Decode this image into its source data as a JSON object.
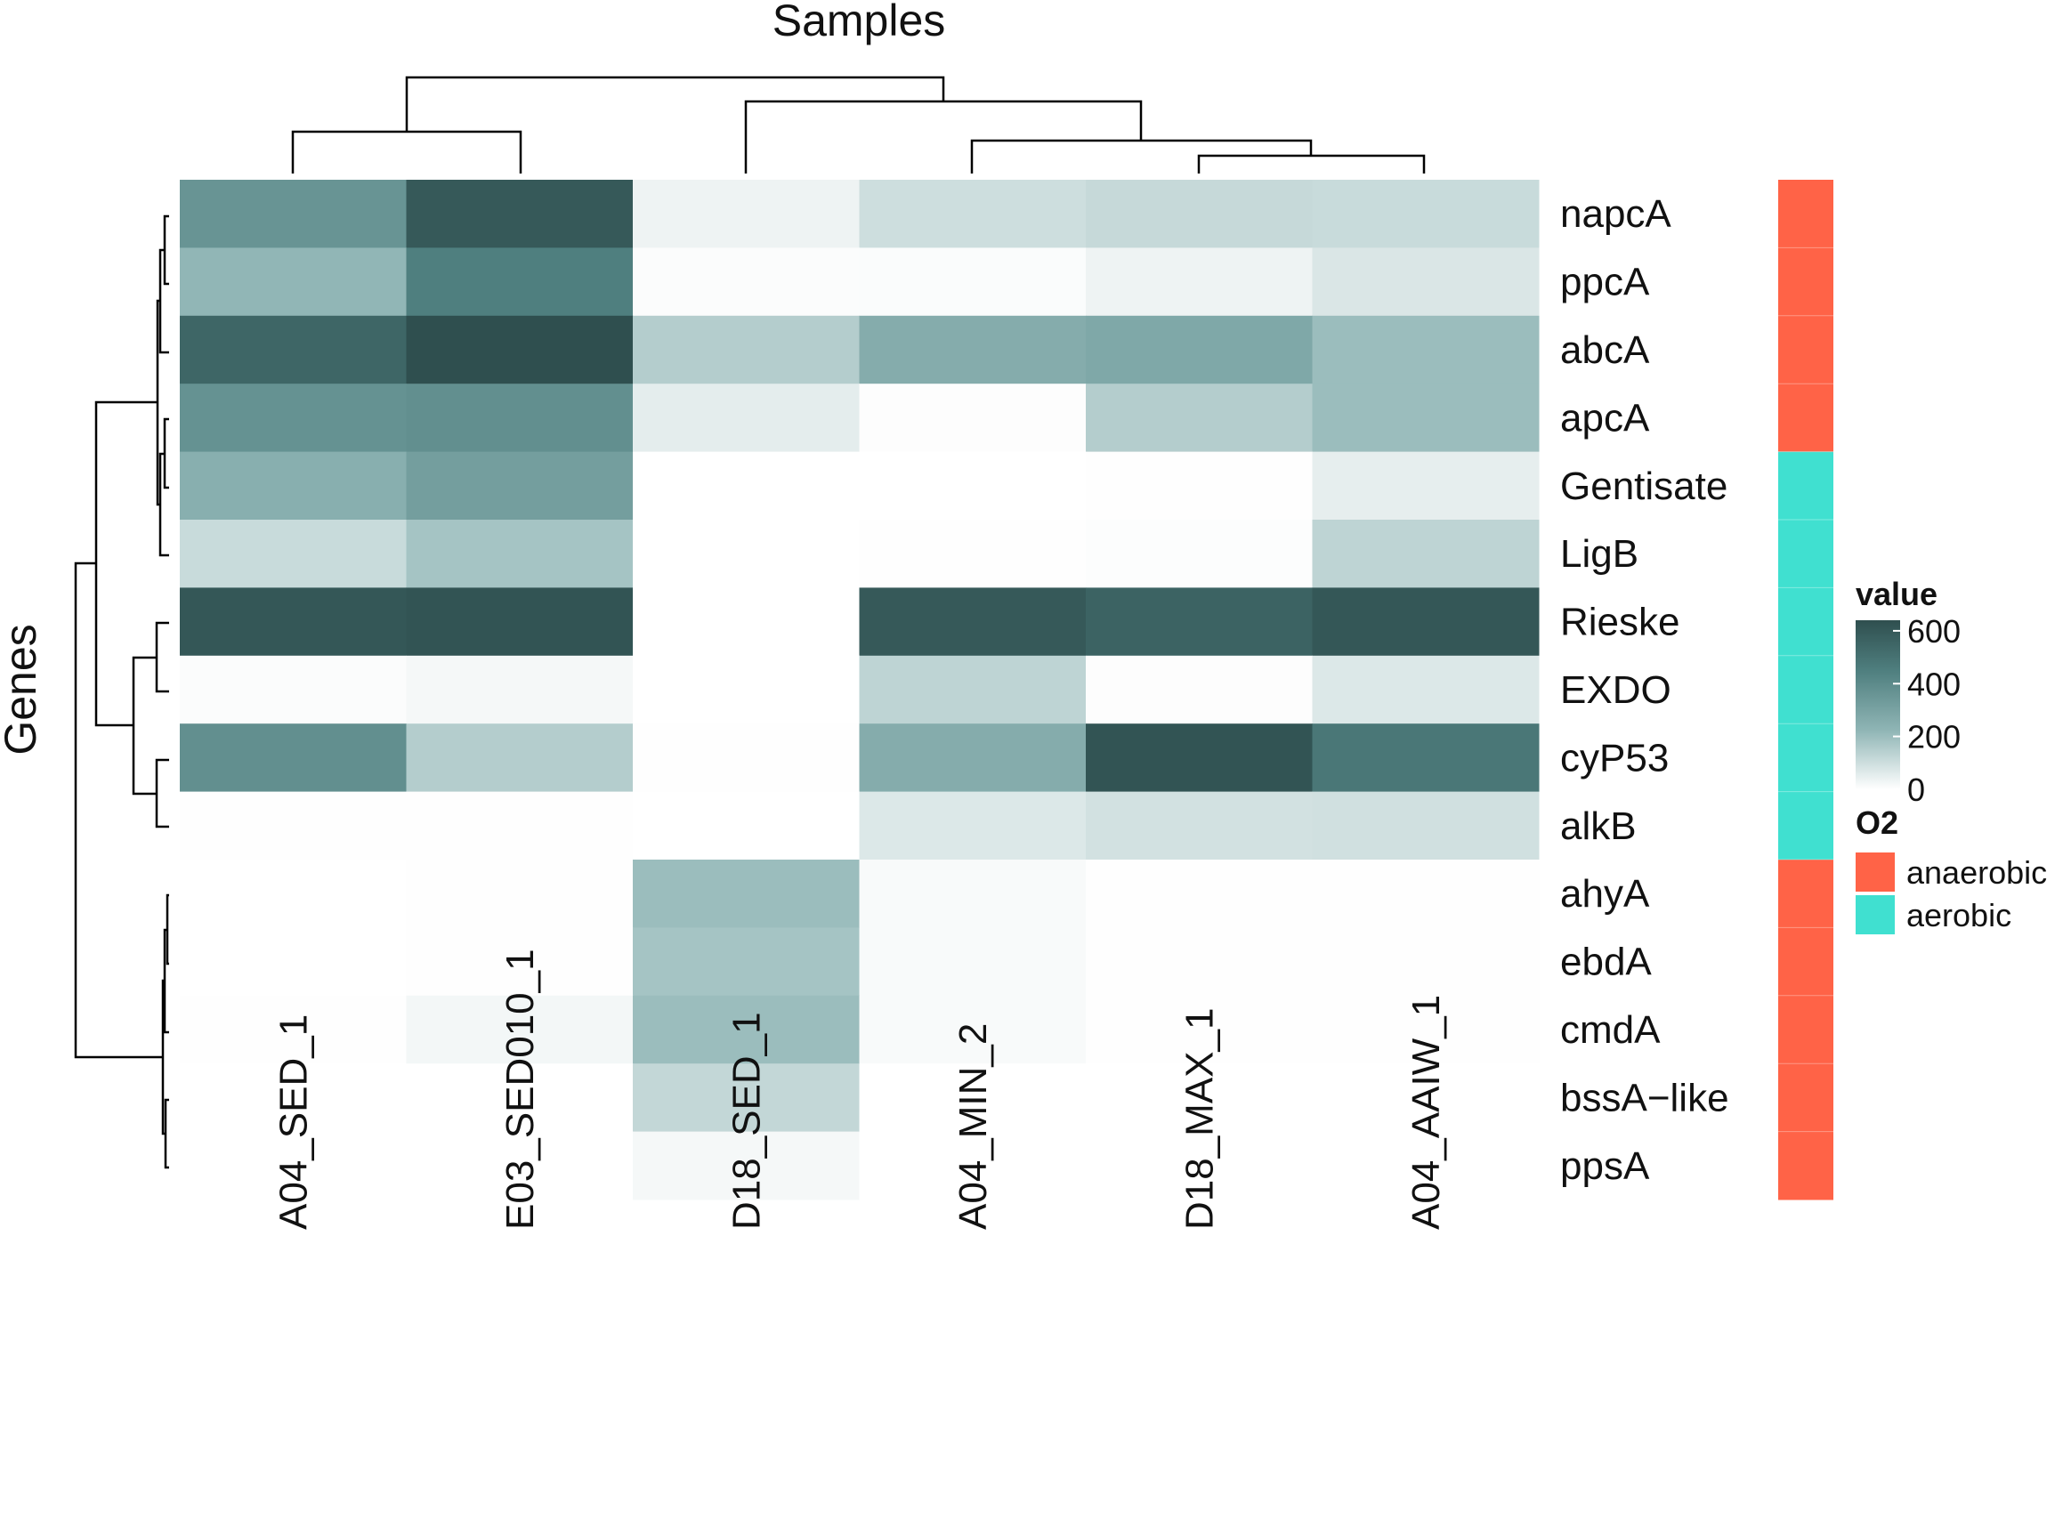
{
  "chart_data": {
    "type": "heatmap",
    "title": "Samples",
    "ylabel": "Genes",
    "columns": [
      "A04_SED_1",
      "E03_SED010_1",
      "D18_SED_1",
      "A04_MIN_2",
      "D18_MAX_1",
      "A04_AAIW_1"
    ],
    "rows": [
      "napcA",
      "ppcA",
      "abcA",
      "apcA",
      "Gentisate",
      "LigB",
      "Rieske",
      "EXDO",
      "cyP53",
      "alkB",
      "ahyA",
      "ebdA",
      "cmdA",
      "bssA−like",
      "ppsA"
    ],
    "values": [
      [
        360,
        600,
        35,
        100,
        115,
        110
      ],
      [
        220,
        450,
        8,
        10,
        35,
        75
      ],
      [
        550,
        640,
        150,
        260,
        280,
        200
      ],
      [
        370,
        380,
        55,
        5,
        150,
        200
      ],
      [
        250,
        320,
        0,
        0,
        3,
        50
      ],
      [
        110,
        180,
        0,
        3,
        6,
        130
      ],
      [
        610,
        620,
        0,
        600,
        560,
        610
      ],
      [
        8,
        20,
        0,
        130,
        5,
        70
      ],
      [
        380,
        150,
        2,
        260,
        620,
        480
      ],
      [
        3,
        2,
        0,
        70,
        90,
        95
      ],
      [
        0,
        2,
        200,
        15,
        3,
        3
      ],
      [
        0,
        3,
        180,
        15,
        3,
        3
      ],
      [
        3,
        25,
        200,
        15,
        3,
        3
      ],
      [
        0,
        0,
        120,
        0,
        0,
        0
      ],
      [
        0,
        0,
        20,
        0,
        0,
        0
      ]
    ],
    "row_annotation": {
      "name": "O2",
      "values": [
        "anaerobic",
        "anaerobic",
        "anaerobic",
        "anaerobic",
        "aerobic",
        "aerobic",
        "aerobic",
        "aerobic",
        "aerobic",
        "aerobic",
        "anaerobic",
        "anaerobic",
        "anaerobic",
        "anaerobic",
        "anaerobic"
      ]
    },
    "color_scale": {
      "title": "value",
      "min": 0,
      "max": 640,
      "low_color": "#ffffff",
      "high_color": "#2f4f4f",
      "ticks": [
        600,
        400,
        200,
        0
      ]
    },
    "annotation_legend": {
      "title": "O2",
      "entries": [
        {
          "label": "anaerobic",
          "color": "#ff6347"
        },
        {
          "label": "aerobic",
          "color": "#40e0d0"
        }
      ]
    }
  }
}
